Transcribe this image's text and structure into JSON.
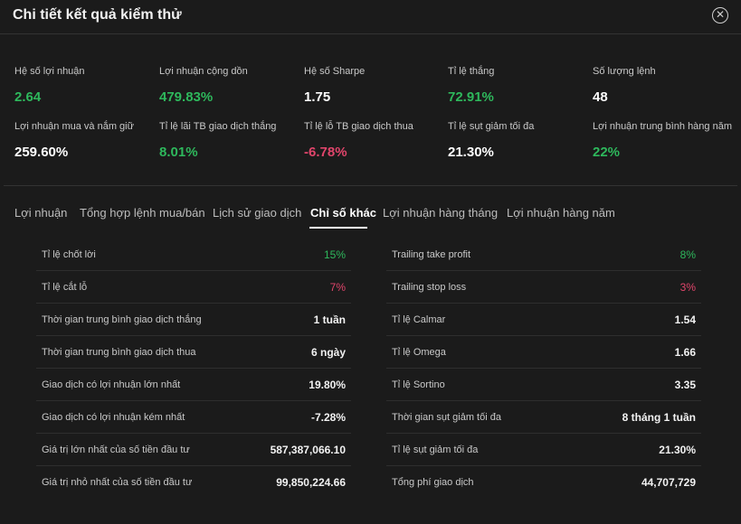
{
  "dialog": {
    "title": "Chi tiết kết quả kiểm thử"
  },
  "summary": [
    {
      "label": "Hệ số lợi nhuận",
      "value": "2.64",
      "tone": "green"
    },
    {
      "label": "Lợi nhuận cộng dồn",
      "value": "479.83%",
      "tone": "green"
    },
    {
      "label": "Hệ số Sharpe",
      "value": "1.75",
      "tone": "white"
    },
    {
      "label": "Tỉ lệ thắng",
      "value": "72.91%",
      "tone": "green"
    },
    {
      "label": "Số lượng lệnh",
      "value": "48",
      "tone": "white"
    },
    {
      "label": "Lợi nhuận mua và nắm giữ",
      "value": "259.60%",
      "tone": "white"
    },
    {
      "label": "Tỉ lệ lãi TB giao dịch thắng",
      "value": "8.01%",
      "tone": "green"
    },
    {
      "label": "Tỉ lệ lỗ TB giao dịch thua",
      "value": "-6.78%",
      "tone": "red"
    },
    {
      "label": "Tỉ lệ sụt giảm tối đa",
      "value": "21.30%",
      "tone": "white"
    },
    {
      "label": "Lợi nhuận trung bình hàng năm",
      "value": "22%",
      "tone": "green"
    }
  ],
  "tabs": [
    "Lợi nhuận",
    "Tổng hợp lệnh mua/bán",
    "Lịch sử giao dịch",
    "Chỉ số khác",
    "Lợi nhuận hàng tháng",
    "Lợi nhuận hàng năm"
  ],
  "active_tab": "Chỉ số khác",
  "left_table": [
    {
      "label": "Tỉ lệ chốt lời",
      "value": "15%",
      "tone": "green"
    },
    {
      "label": "Tỉ lệ cắt lỗ",
      "value": "7%",
      "tone": "red"
    },
    {
      "label": "Thời gian trung bình giao dịch thắng",
      "value": "1 tuần",
      "tone": "white"
    },
    {
      "label": "Thời gian trung bình giao dịch thua",
      "value": "6 ngày",
      "tone": "white"
    },
    {
      "label": "Giao dịch có lợi nhuận lớn nhất",
      "value": "19.80%",
      "tone": "white"
    },
    {
      "label": "Giao dịch có lợi nhuận kém nhất",
      "value": "-7.28%",
      "tone": "white"
    },
    {
      "label": "Giá trị lớn nhất của số tiền đầu tư",
      "value": "587,387,066.10",
      "tone": "white"
    },
    {
      "label": "Giá trị nhỏ nhất của số tiền đầu tư",
      "value": "99,850,224.66",
      "tone": "white"
    }
  ],
  "right_table": [
    {
      "label": "Trailing take profit",
      "value": "8%",
      "tone": "green"
    },
    {
      "label": "Trailing stop loss",
      "value": "3%",
      "tone": "red"
    },
    {
      "label": "Tỉ lệ Calmar",
      "value": "1.54",
      "tone": "white"
    },
    {
      "label": "Tỉ lệ Omega",
      "value": "1.66",
      "tone": "white"
    },
    {
      "label": "Tỉ lệ Sortino",
      "value": "3.35",
      "tone": "white"
    },
    {
      "label": "Thời gian sụt giảm tối đa",
      "value": "8 tháng 1 tuần",
      "tone": "white"
    },
    {
      "label": "Tỉ lệ sụt giảm tối đa",
      "value": "21.30%",
      "tone": "white"
    },
    {
      "label": "Tổng phí giao dịch",
      "value": "44,707,729",
      "tone": "white"
    }
  ],
  "icons": {
    "close": "close-circle-icon"
  },
  "colors": {
    "positive": "#2eb85c",
    "negative": "#e0456b",
    "background": "#1b1b1b"
  }
}
